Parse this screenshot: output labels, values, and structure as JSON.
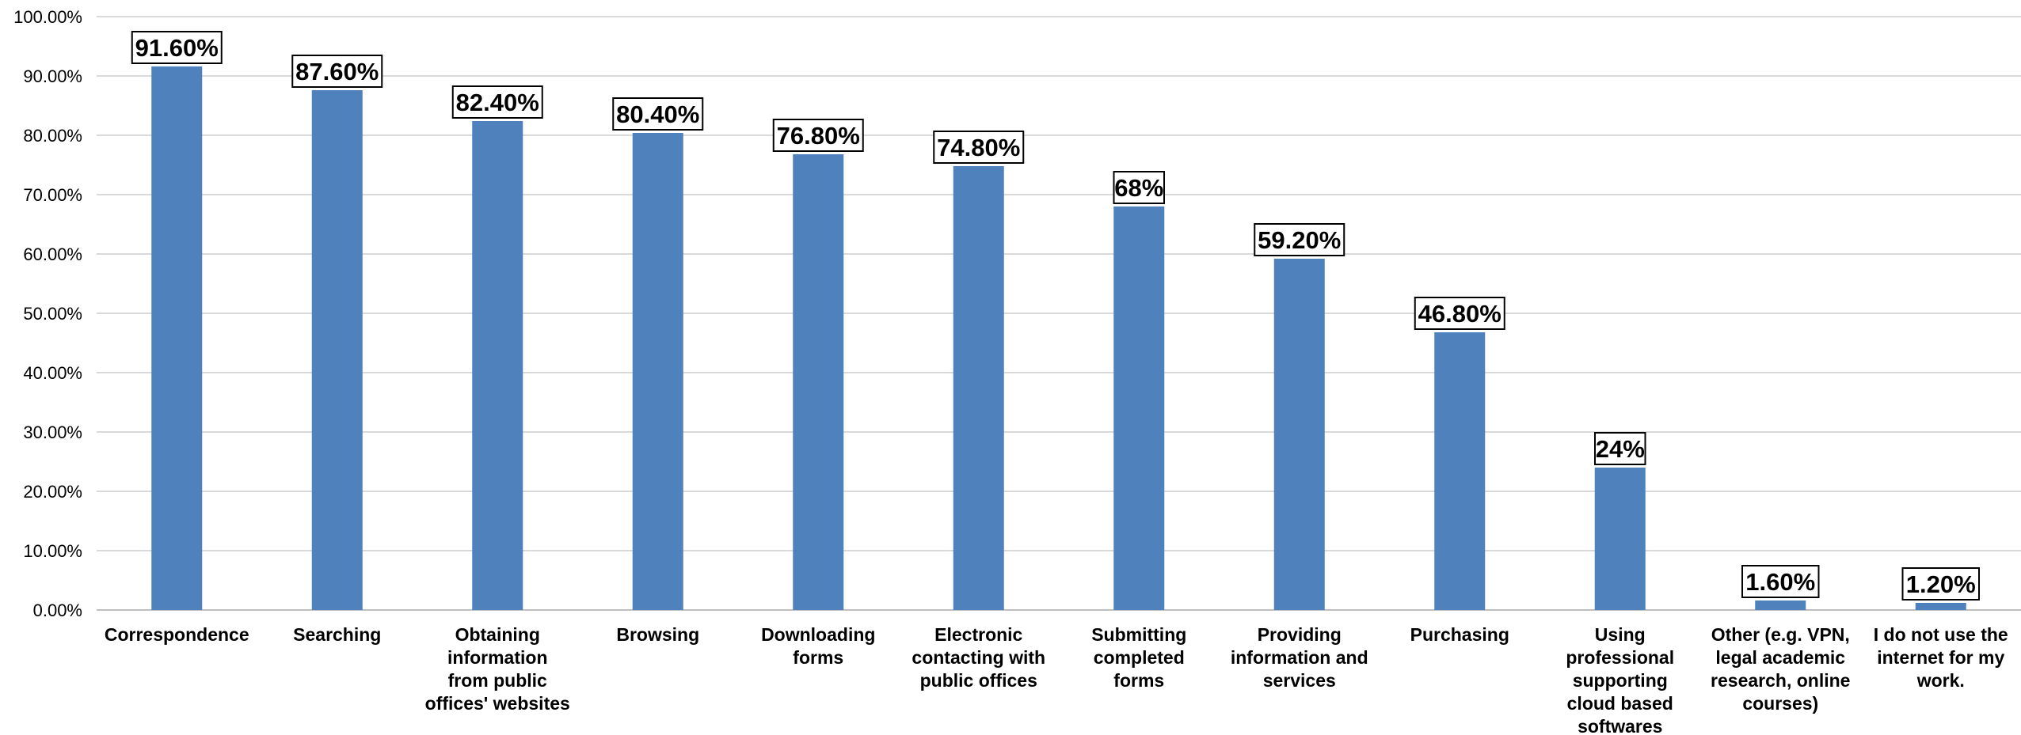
{
  "chart_data": {
    "type": "bar",
    "categories": [
      [
        "Correspondence"
      ],
      [
        "Searching"
      ],
      [
        "Obtaining",
        "information",
        "from public",
        "offices' websites"
      ],
      [
        "Browsing"
      ],
      [
        "Downloading",
        "forms"
      ],
      [
        "Electronic",
        "contacting with",
        "public offices"
      ],
      [
        "Submitting",
        "completed",
        "forms"
      ],
      [
        "Providing",
        "information and",
        "services"
      ],
      [
        "Purchasing"
      ],
      [
        "Using",
        "professional",
        "supporting",
        "cloud based",
        "softwares"
      ],
      [
        "Other (e.g. VPN,",
        "legal academic",
        "research, online",
        "courses)"
      ],
      [
        "I do not use the",
        "internet for my",
        "work."
      ]
    ],
    "values": [
      91.6,
      87.6,
      82.4,
      80.4,
      76.8,
      74.8,
      68,
      59.2,
      46.8,
      24,
      1.6,
      1.2
    ],
    "data_labels": [
      "91.60%",
      "87.60%",
      "82.40%",
      "80.40%",
      "76.80%",
      "74.80%",
      "68%",
      "59.20%",
      "46.80%",
      "24%",
      "1.60%",
      "1.20%"
    ],
    "y_ticks": [
      "0.00%",
      "10.00%",
      "20.00%",
      "30.00%",
      "40.00%",
      "50.00%",
      "60.00%",
      "70.00%",
      "80.00%",
      "90.00%",
      "100.00%"
    ],
    "ylim": [
      0,
      100
    ],
    "title": "",
    "xlabel": "",
    "ylabel": "",
    "grid": true,
    "legend": "none",
    "bar_color": "#4f81bd"
  }
}
